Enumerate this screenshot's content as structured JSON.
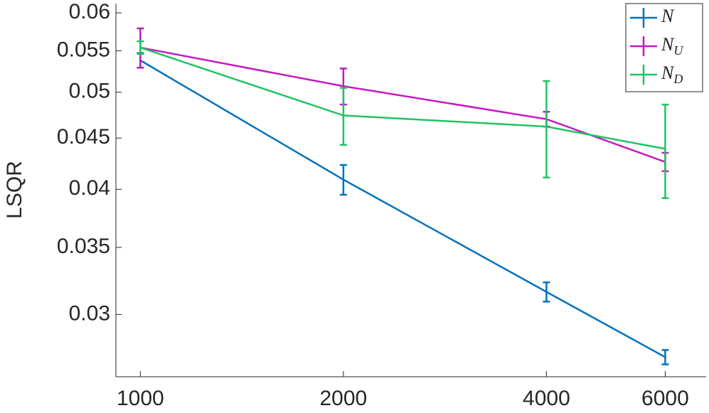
{
  "chart_data": {
    "type": "line",
    "y_label": "LSQR",
    "x_log": true,
    "y_log": true,
    "legend": "upper right",
    "x": [
      1000,
      2000,
      4000,
      6000
    ],
    "xlim": [
      920,
      6900
    ],
    "xticks": [
      1000,
      2000,
      4000,
      6000
    ],
    "ylim": [
      0.026,
      0.0613
    ],
    "yticks": [
      0.03,
      0.035,
      0.04,
      0.045,
      0.05,
      0.055,
      0.06
    ],
    "series": [
      {
        "name": "N",
        "color": "#0072bd",
        "values": [
          0.0538,
          0.0409,
          0.0316,
          0.0272
        ],
        "errors": [
          0.0009,
          0.0014,
          0.0007,
          0.00045
        ]
      },
      {
        "name": "NU",
        "color": "#c21bc2",
        "values": [
          0.0554,
          0.0507,
          0.047,
          0.0426
        ],
        "errors": [
          0.0025,
          0.0021,
          0.0008,
          0.0009
        ]
      },
      {
        "name": "ND",
        "color": "#1fc462",
        "values": [
          0.0554,
          0.0474,
          0.0462,
          0.0439
        ],
        "errors": [
          0.0008,
          0.0031,
          0.0051,
          0.0047
        ]
      }
    ]
  }
}
